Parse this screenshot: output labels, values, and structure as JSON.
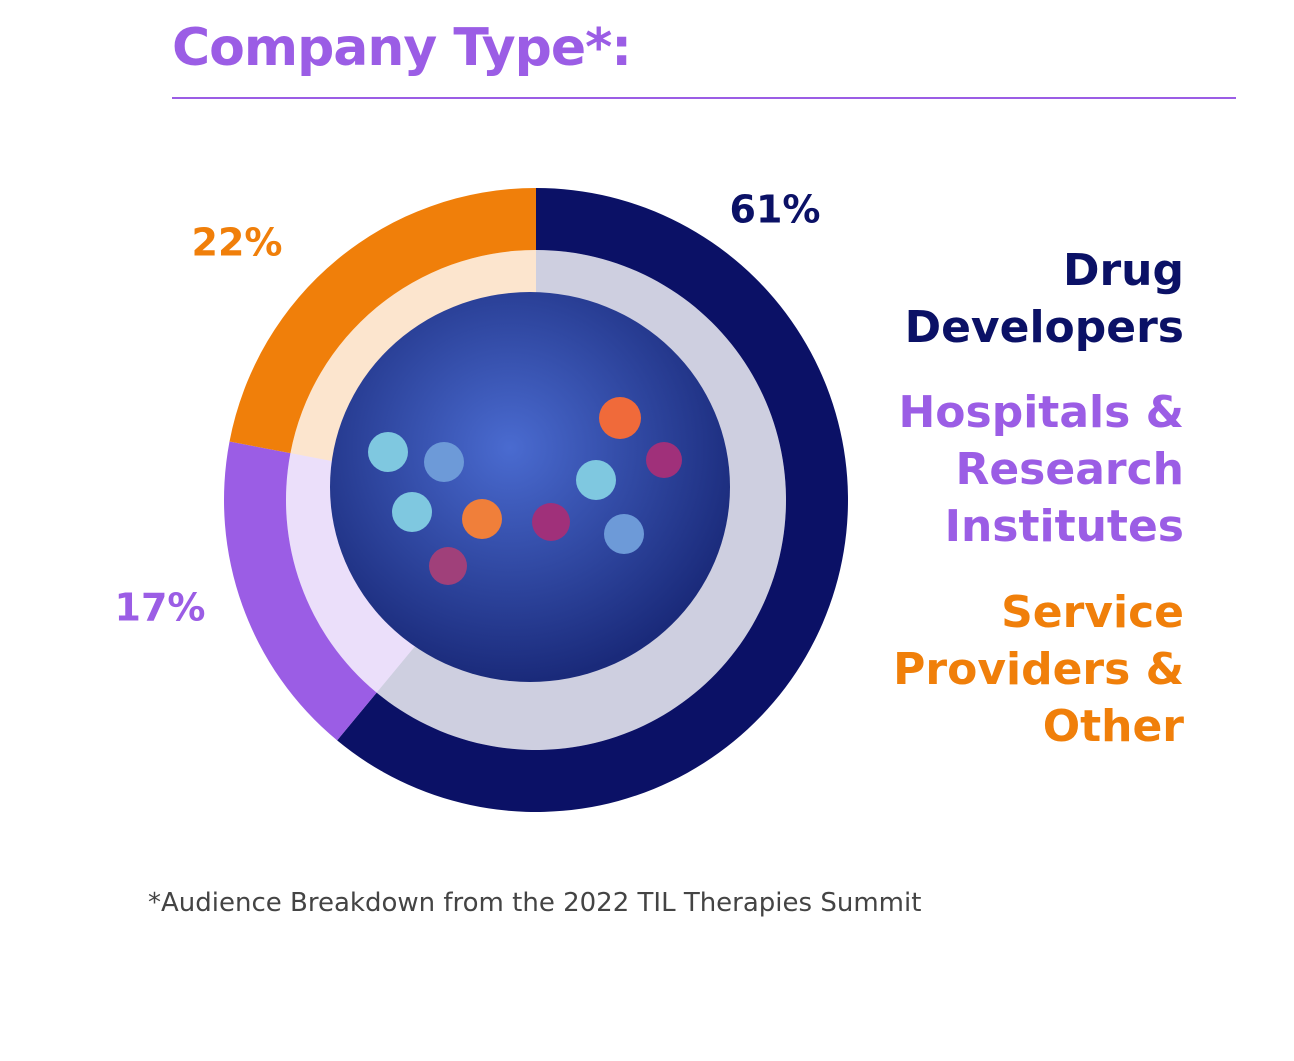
{
  "title": "Company Type*:",
  "chart_data": {
    "type": "pie",
    "categories": [
      "Drug Developers",
      "Hospitals & Research Institutes",
      "Service Providers & Other"
    ],
    "values": [
      61,
      17,
      22
    ],
    "value_labels": [
      "61%",
      "17%",
      "22%"
    ],
    "colors": [
      "#0b1166",
      "#9b5de5",
      "#f07f0a"
    ]
  },
  "footnote": "*Audience Breakdown from the 2022 TIL Therapies Summit"
}
